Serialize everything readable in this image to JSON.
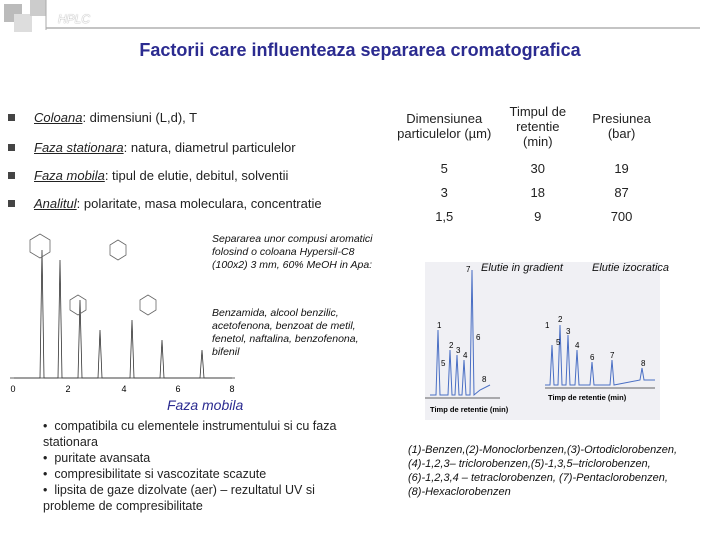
{
  "header": {
    "label": "HPLC"
  },
  "title": "Factorii care influenteaza separarea cromatografica",
  "bullets": [
    {
      "term": "Coloana",
      "text": ": dimensiuni (L,d), T"
    },
    {
      "term": "Faza stationara",
      "text": ": natura, diametrul particulelor"
    },
    {
      "term": "Faza mobila",
      "text": ": tipul de elutie, debitul, solventii"
    },
    {
      "term": "Analitul",
      "text": ": polaritate, masa moleculara, concentratie"
    }
  ],
  "table": {
    "header": [
      "Dimensiunea particulelor (µm)",
      "Timpul de retentie (min)",
      "Presiunea (bar)"
    ],
    "rows": [
      [
        "5",
        "30",
        "19"
      ],
      [
        "3",
        "18",
        "87"
      ],
      [
        "1,5",
        "9",
        "700"
      ]
    ]
  },
  "left_chromatogram": {
    "caption": "Separarea unor compusi aromatici folosind o coloana Hypersil-C8 (100x2) 3 mm, 60% MeOH in Apa:",
    "compounds": "Benzamida, alcool benzilic, acetofenona, benzoat de metil, fenetol, naftalina, benzofenona, bifenil",
    "x_ticks": [
      "0",
      "2",
      "4",
      "6",
      "8"
    ]
  },
  "right_chromatogram": {
    "gradient_label": "Elutie in gradient",
    "isocratic_label": "Elutie izocratica",
    "x_axis_label": "Timp de retentie (min)",
    "gradient_peaks": [
      "1",
      "2",
      "3",
      "4",
      "5",
      "6",
      "7",
      "8"
    ],
    "isocratic_peaks": [
      "1",
      "2",
      "3",
      "4",
      "5",
      "6",
      "7",
      "8"
    ],
    "legend": [
      "(1)-Benzen,(2)-Monoclorbenzen,(3)-Ortodiclorobenzen,",
      "(4)-1,2,3– triclorobenzen,(5)-1,3,5–triclorobenzen,",
      "(6)-1,2,3,4 – tetraclorobenzen, (7)-Pentaclorobenzen,",
      "(8)-Hexaclorobenzen"
    ]
  },
  "mobile_phase": {
    "title": "Faza mobila",
    "items": [
      "compatibila cu elementele instrumentului si cu faza stationara",
      "puritate avansata",
      "compresibilitate si vascozitate scazute",
      "lipsita de gaze dizolvate (aer) – rezultatul UV si probleme de compresibilitate"
    ]
  }
}
